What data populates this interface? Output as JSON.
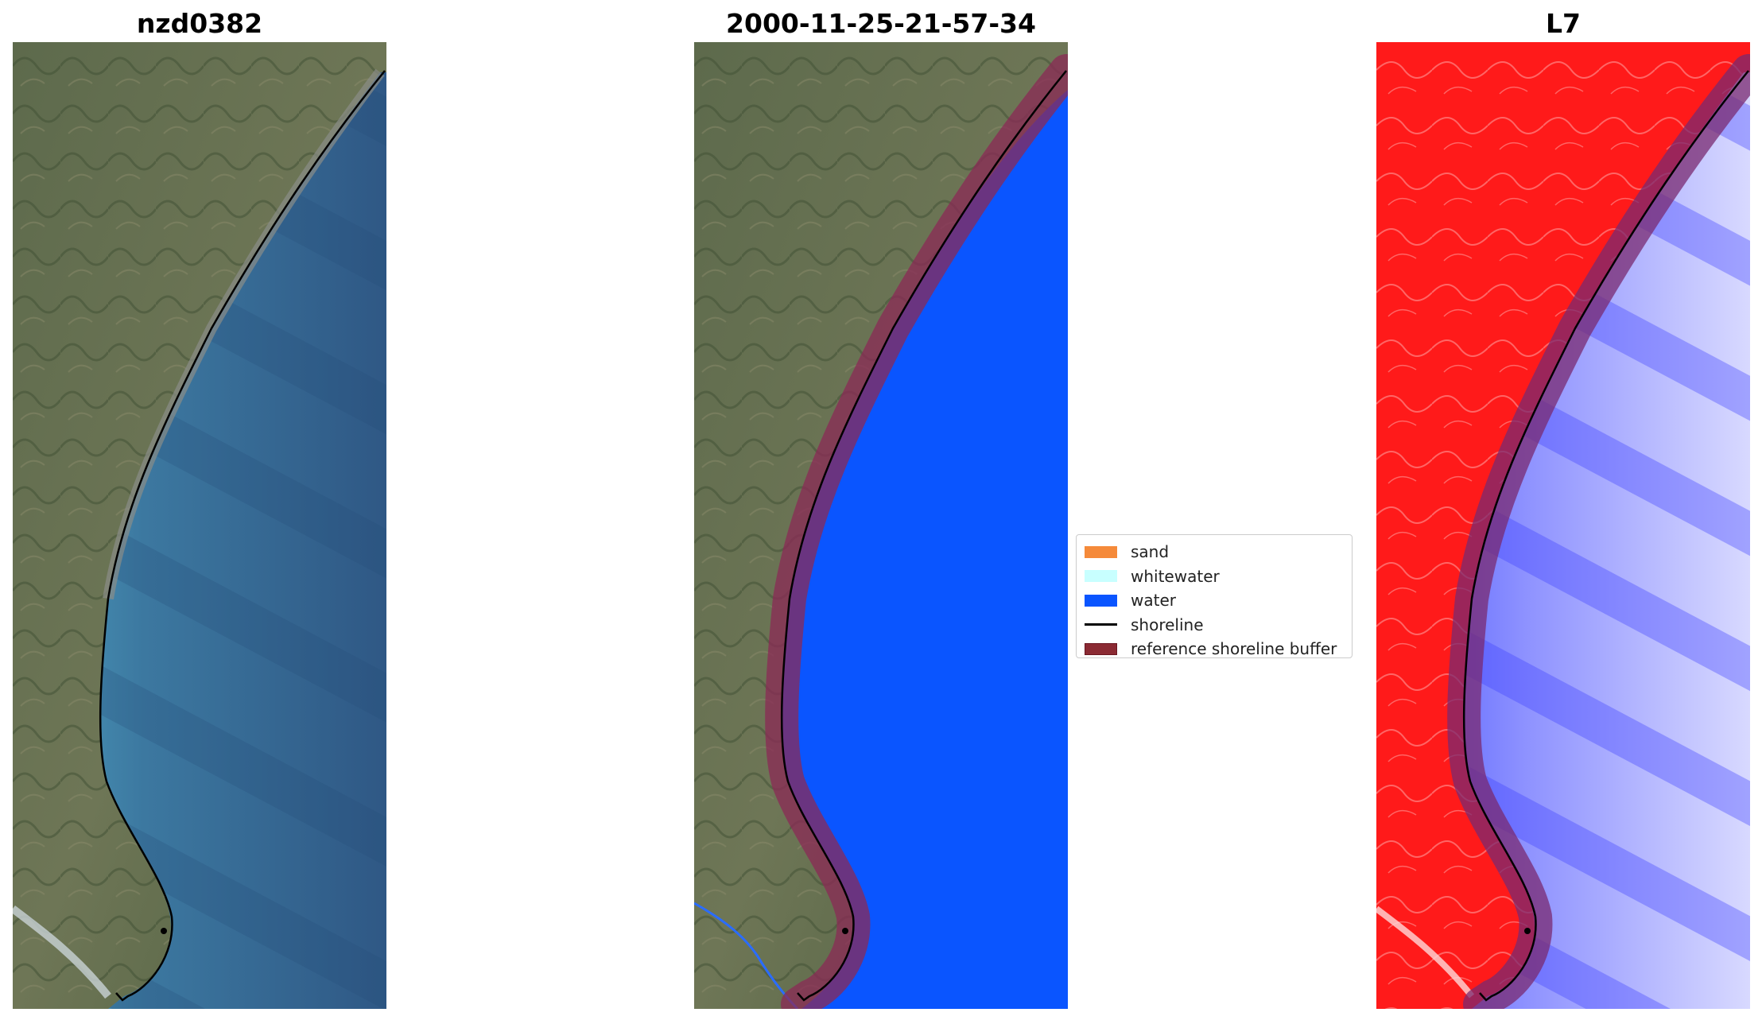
{
  "panels": [
    {
      "title": "nzd0382"
    },
    {
      "title": "2000-11-25-21-57-34"
    },
    {
      "title": "L7"
    }
  ],
  "legend": {
    "items": [
      {
        "label": "sand",
        "kind": "patch",
        "color": "#f58a3a"
      },
      {
        "label": "whitewater",
        "kind": "patch",
        "color": "#c8ffff"
      },
      {
        "label": "water",
        "kind": "patch",
        "color": "#0a55ff"
      },
      {
        "label": "shoreline",
        "kind": "line",
        "color": "#000000"
      },
      {
        "label": "reference shoreline buffer",
        "kind": "patch",
        "color": "#8b2a33"
      }
    ]
  }
}
